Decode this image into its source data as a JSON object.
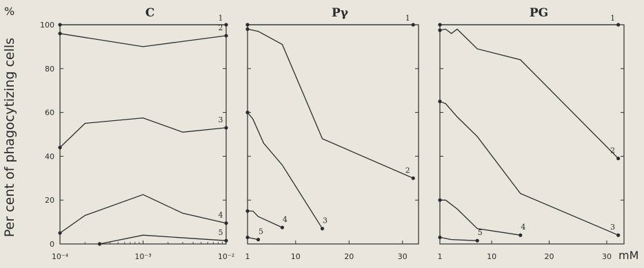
{
  "figure": {
    "y_unit": "%",
    "y_axis_label": "Per cent of phagocytizing cells",
    "x_unit": "mM",
    "y_ticks": [
      "0",
      "20",
      "40",
      "60",
      "80",
      "100"
    ]
  },
  "chart_data": [
    {
      "type": "line",
      "title": "C",
      "x_scale": "log",
      "xlim": [
        0.0001,
        0.01
      ],
      "ylim": [
        0,
        100
      ],
      "x_tick_labels": [
        "10⁻⁴",
        "10⁻³",
        "10⁻²"
      ],
      "x_tick_values": [
        0.0001,
        0.001,
        0.01
      ],
      "series": [
        {
          "name": "1",
          "x": [
            0.0001,
            0.01
          ],
          "y": [
            100,
            100
          ]
        },
        {
          "name": "2",
          "x": [
            0.0001,
            0.001,
            0.01
          ],
          "y": [
            96,
            90,
            95
          ]
        },
        {
          "name": "3",
          "x": [
            0.0001,
            0.0002,
            0.001,
            0.003,
            0.01
          ],
          "y": [
            44,
            55,
            57.5,
            51,
            53
          ]
        },
        {
          "name": "4",
          "x": [
            0.0001,
            0.0002,
            0.001,
            0.003,
            0.01
          ],
          "y": [
            5,
            13,
            22.5,
            14,
            9.5
          ]
        },
        {
          "name": "5",
          "x": [
            0.0003,
            0.001,
            0.01
          ],
          "y": [
            0,
            4,
            1.5
          ]
        }
      ]
    },
    {
      "type": "line",
      "title": "Pγ",
      "x_scale": "linear",
      "xlim": [
        1,
        33
      ],
      "ylim": [
        0,
        100
      ],
      "x_tick_labels": [
        "1",
        "10",
        "20",
        "30"
      ],
      "x_tick_values": [
        1,
        10,
        20,
        30
      ],
      "series": [
        {
          "name": "1",
          "x": [
            1,
            32
          ],
          "y": [
            100,
            100
          ]
        },
        {
          "name": "2",
          "x": [
            1,
            3,
            7.5,
            15,
            32
          ],
          "y": [
            98,
            97,
            91,
            48,
            30
          ]
        },
        {
          "name": "3",
          "x": [
            1,
            2,
            4,
            7.5,
            15
          ],
          "y": [
            60,
            57,
            46,
            36,
            7
          ]
        },
        {
          "name": "4",
          "x": [
            1,
            2,
            3,
            7.5
          ],
          "y": [
            15,
            15,
            12.5,
            7.5
          ]
        },
        {
          "name": "5",
          "x": [
            1,
            3
          ],
          "y": [
            3,
            2
          ]
        }
      ]
    },
    {
      "type": "line",
      "title": "PG",
      "x_scale": "linear",
      "xlim": [
        1,
        33
      ],
      "ylim": [
        0,
        100
      ],
      "x_tick_labels": [
        "1",
        "10",
        "20",
        "30"
      ],
      "x_tick_values": [
        1,
        10,
        20,
        30
      ],
      "series": [
        {
          "name": "1",
          "x": [
            1,
            32
          ],
          "y": [
            100,
            100
          ]
        },
        {
          "name": "2",
          "x": [
            1,
            2,
            3,
            4,
            7.5,
            15,
            32
          ],
          "y": [
            97.5,
            98,
            96,
            98,
            89,
            84,
            39
          ]
        },
        {
          "name": "3",
          "x": [
            1,
            2,
            4,
            7.5,
            15,
            32
          ],
          "y": [
            65,
            64,
            58,
            49,
            23,
            4
          ]
        },
        {
          "name": "4",
          "x": [
            1,
            2,
            4,
            7.5,
            15
          ],
          "y": [
            20,
            20,
            16,
            7,
            4
          ]
        },
        {
          "name": "5",
          "x": [
            1,
            3,
            7.5
          ],
          "y": [
            3,
            2,
            1.5
          ]
        }
      ]
    }
  ]
}
